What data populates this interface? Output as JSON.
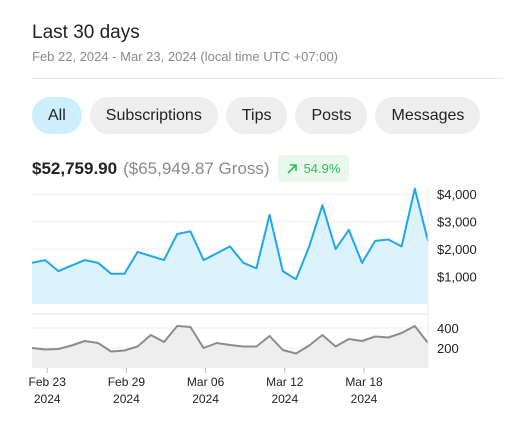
{
  "header": {
    "title": "Last 30 days",
    "date_range": "Feb 22, 2024 - Mar 23, 2024 (local time UTC +07:00)"
  },
  "tabs": [
    {
      "label": "All",
      "active": true
    },
    {
      "label": "Subscriptions",
      "active": false
    },
    {
      "label": "Tips",
      "active": false
    },
    {
      "label": "Posts",
      "active": false
    },
    {
      "label": "Messages",
      "active": false
    }
  ],
  "summary": {
    "net": "$52,759.90",
    "gross": "($65,949.87 Gross)",
    "change": "54.9%",
    "change_icon": "arrow-up-right-icon"
  },
  "colors": {
    "accent": "#1fa8e6",
    "area_fill": "#dcf2fc",
    "secondary_line": "#8c8c8c",
    "secondary_fill": "#eeeeee",
    "positive": "#2ebd59"
  },
  "chart_data": [
    {
      "type": "area",
      "x": [
        "Feb 22",
        "Feb 23",
        "Feb 24",
        "Feb 25",
        "Feb 26",
        "Feb 27",
        "Feb 28",
        "Feb 29",
        "Mar 01",
        "Mar 02",
        "Mar 03",
        "Mar 04",
        "Mar 05",
        "Mar 06",
        "Mar 07",
        "Mar 08",
        "Mar 09",
        "Mar 10",
        "Mar 11",
        "Mar 12",
        "Mar 13",
        "Mar 14",
        "Mar 15",
        "Mar 16",
        "Mar 17",
        "Mar 18",
        "Mar 19",
        "Mar 20",
        "Mar 21",
        "Mar 22",
        "Mar 23"
      ],
      "series": [
        {
          "values": [
            1500,
            1600,
            1200,
            1400,
            1600,
            1500,
            1100,
            1100,
            1900,
            1750,
            1600,
            2550,
            2650,
            1600,
            1850,
            2100,
            1500,
            1300,
            3250,
            1200,
            900,
            2100,
            3600,
            2000,
            2700,
            1500,
            2300,
            2350,
            2100,
            4200,
            2300
          ]
        }
      ],
      "ylim": [
        0,
        4300
      ],
      "yticks": [
        "$4,000",
        "$3,000",
        "$2,000",
        "$1,000"
      ],
      "ytick_values": [
        4000,
        3000,
        2000,
        1000
      ]
    },
    {
      "type": "area",
      "x": [
        "Feb 22",
        "Feb 23",
        "Feb 24",
        "Feb 25",
        "Feb 26",
        "Feb 27",
        "Feb 28",
        "Feb 29",
        "Mar 01",
        "Mar 02",
        "Mar 03",
        "Mar 04",
        "Mar 05",
        "Mar 06",
        "Mar 07",
        "Mar 08",
        "Mar 09",
        "Mar 10",
        "Mar 11",
        "Mar 12",
        "Mar 13",
        "Mar 14",
        "Mar 15",
        "Mar 16",
        "Mar 17",
        "Mar 18",
        "Mar 19",
        "Mar 20",
        "Mar 21",
        "Mar 22",
        "Mar 23"
      ],
      "series": [
        {
          "values": [
            200,
            185,
            190,
            225,
            270,
            250,
            165,
            175,
            215,
            330,
            260,
            420,
            410,
            200,
            250,
            230,
            215,
            215,
            320,
            180,
            145,
            225,
            330,
            215,
            290,
            270,
            315,
            305,
            350,
            420,
            250
          ]
        }
      ],
      "ylim": [
        0,
        470
      ],
      "yticks": [
        "400",
        "200"
      ],
      "ytick_values": [
        400,
        200
      ]
    }
  ],
  "x_axis": {
    "labels": [
      {
        "day": "Feb 23",
        "year": "2024",
        "index": 1
      },
      {
        "day": "Feb 29",
        "year": "2024",
        "index": 7
      },
      {
        "day": "Mar 06",
        "year": "2024",
        "index": 13
      },
      {
        "day": "Mar 12",
        "year": "2024",
        "index": 19
      },
      {
        "day": "Mar 18",
        "year": "2024",
        "index": 25
      }
    ]
  }
}
